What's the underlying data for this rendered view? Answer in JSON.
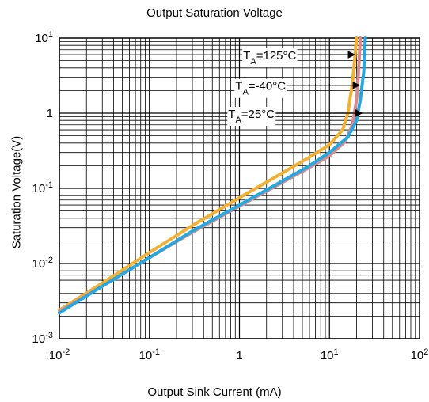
{
  "chart_data": {
    "type": "line",
    "title": "Output Saturation Voltage",
    "xlabel": "Output Sink Current  (mA)",
    "ylabel": "Saturation Voltage(V)",
    "x_scale": "log",
    "y_scale": "log",
    "xlim": [
      0.01,
      100
    ],
    "ylim": [
      0.001,
      10
    ],
    "grid": true,
    "x_ticks": [
      {
        "base": "10",
        "exp": "-2",
        "value": 0.01
      },
      {
        "base": "10",
        "exp": "-1",
        "value": 0.1
      },
      {
        "base": "1",
        "exp": "",
        "value": 1
      },
      {
        "base": "10",
        "exp": "1",
        "value": 10
      },
      {
        "base": "10",
        "exp": "2",
        "value": 100
      }
    ],
    "y_ticks": [
      {
        "base": "10",
        "exp": "-3",
        "value": 0.001
      },
      {
        "base": "10",
        "exp": "-2",
        "value": 0.01
      },
      {
        "base": "10",
        "exp": "-1",
        "value": 0.1
      },
      {
        "base": "1",
        "exp": "",
        "value": 1
      },
      {
        "base": "10",
        "exp": "1",
        "value": 10
      }
    ],
    "series": [
      {
        "name": "TA=125°C",
        "label_parts": {
          "main": "T",
          "sub": "A",
          "rest": "=125°C"
        },
        "color": "#f2b134",
        "points": [
          [
            0.01,
            0.0024
          ],
          [
            0.03,
            0.0055
          ],
          [
            0.1,
            0.014
          ],
          [
            0.3,
            0.032
          ],
          [
            1,
            0.075
          ],
          [
            3,
            0.16
          ],
          [
            6,
            0.26
          ],
          [
            10,
            0.38
          ],
          [
            14,
            0.6
          ],
          [
            16,
            1.0
          ],
          [
            18,
            2.5
          ],
          [
            20,
            10
          ]
        ]
      },
      {
        "name": "TA=-40°C",
        "label_parts": {
          "main": "T",
          "sub": "A",
          "rest": "=-40°C"
        },
        "color": "#d98a8a",
        "points": [
          [
            0.01,
            0.0023
          ],
          [
            0.03,
            0.005
          ],
          [
            0.1,
            0.012
          ],
          [
            0.3,
            0.026
          ],
          [
            1,
            0.058
          ],
          [
            3,
            0.12
          ],
          [
            6,
            0.19
          ],
          [
            10,
            0.27
          ],
          [
            15,
            0.42
          ],
          [
            18,
            0.7
          ],
          [
            20,
            1.5
          ],
          [
            21,
            3.5
          ],
          [
            22,
            10
          ]
        ]
      },
      {
        "name": "TA=25°C",
        "label_parts": {
          "main": "T",
          "sub": "A",
          "rest": "=25°C"
        },
        "color": "#27a7e0",
        "points": [
          [
            0.01,
            0.0022
          ],
          [
            0.03,
            0.005
          ],
          [
            0.1,
            0.012
          ],
          [
            0.3,
            0.027
          ],
          [
            1,
            0.06
          ],
          [
            3,
            0.125
          ],
          [
            6,
            0.2
          ],
          [
            10,
            0.3
          ],
          [
            16,
            0.48
          ],
          [
            20,
            0.8
          ],
          [
            22,
            1.5
          ],
          [
            24,
            3.5
          ],
          [
            25,
            10
          ]
        ]
      }
    ],
    "annotations": [
      {
        "series": "TA=125°C",
        "label": "TA=125°C",
        "text_x": 1.1,
        "text_y": 6.0,
        "arrow_to_x": 19.0,
        "arrow_to_y": 6.0
      },
      {
        "series": "TA=-40°C",
        "label": "TA=-40°C",
        "text_x": 0.9,
        "text_y": 2.35,
        "arrow_to_x": 21.5,
        "arrow_to_y": 2.35
      },
      {
        "series": "TA=25°C",
        "label": "TA=25°C",
        "text_x": 0.75,
        "text_y": 1.0,
        "arrow_to_x": 23.0,
        "arrow_to_y": 1.0
      }
    ]
  }
}
